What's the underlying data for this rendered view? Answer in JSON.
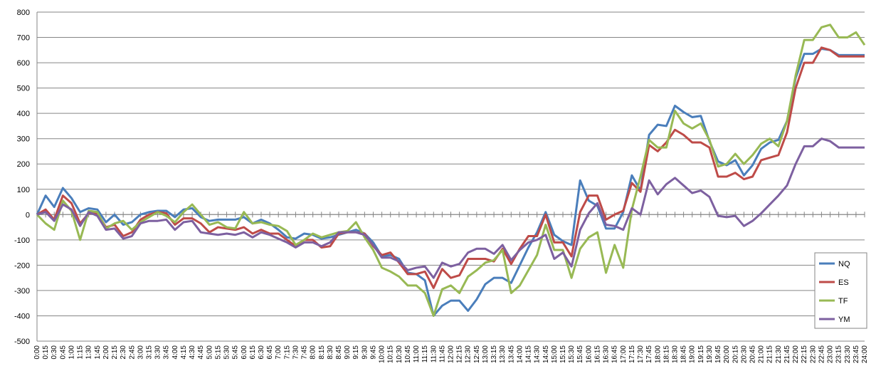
{
  "chart_data": {
    "type": "line",
    "categories": [
      "0:00",
      "0:15",
      "0:30",
      "0:45",
      "1:00",
      "1:15",
      "1:30",
      "1:45",
      "2:00",
      "2:15",
      "2:30",
      "2:45",
      "3:00",
      "3:15",
      "3:30",
      "3:45",
      "4:00",
      "4:15",
      "4:30",
      "4:45",
      "5:00",
      "5:15",
      "5:30",
      "5:45",
      "6:00",
      "6:15",
      "6:30",
      "6:45",
      "7:00",
      "7:15",
      "7:30",
      "7:45",
      "8:00",
      "8:15",
      "8:30",
      "8:45",
      "9:00",
      "9:15",
      "9:30",
      "9:45",
      "10:00",
      "10:15",
      "10:30",
      "10:45",
      "11:00",
      "11:15",
      "11:30",
      "11:45",
      "12:00",
      "12:15",
      "12:30",
      "12:45",
      "13:00",
      "13:15",
      "13:30",
      "13:45",
      "14:00",
      "14:15",
      "14:30",
      "14:45",
      "15:00",
      "15:15",
      "15:30",
      "15:45",
      "16:00",
      "16:15",
      "16:30",
      "16:45",
      "17:00",
      "17:15",
      "17:30",
      "17:45",
      "18:00",
      "18:15",
      "18:30",
      "18:45",
      "19:00",
      "19:15",
      "19:30",
      "19:45",
      "20:00",
      "20:15",
      "20:30",
      "20:45",
      "21:00",
      "21:15",
      "21:30",
      "21:45",
      "22:00",
      "22:15",
      "22:30",
      "22:45",
      "23:00",
      "23:15",
      "23:30",
      "23:45",
      "24:00"
    ],
    "series": [
      {
        "name": "NQ",
        "color": "#4a7ebb",
        "values": [
          0,
          75,
          30,
          105,
          65,
          10,
          25,
          20,
          -30,
          0,
          -40,
          -30,
          0,
          10,
          15,
          15,
          -10,
          20,
          25,
          -10,
          -25,
          -20,
          -20,
          -20,
          -10,
          -35,
          -20,
          -35,
          -60,
          -90,
          -95,
          -75,
          -80,
          -95,
          -90,
          -80,
          -70,
          -60,
          -75,
          -110,
          -165,
          -160,
          -175,
          -230,
          -235,
          -260,
          -400,
          -360,
          -340,
          -340,
          -380,
          -335,
          -275,
          -250,
          -250,
          -270,
          -200,
          -130,
          -70,
          10,
          -80,
          -105,
          -120,
          135,
          55,
          35,
          -55,
          -55,
          10,
          155,
          95,
          315,
          355,
          350,
          430,
          405,
          385,
          390,
          290,
          210,
          195,
          215,
          155,
          195,
          260,
          285,
          295,
          370,
          540,
          635,
          635,
          655,
          650,
          630,
          630,
          630,
          630
        ]
      },
      {
        "name": "ES",
        "color": "#be4b48",
        "values": [
          0,
          20,
          -20,
          75,
          45,
          -35,
          5,
          5,
          -50,
          -40,
          -85,
          -70,
          -20,
          0,
          10,
          5,
          -40,
          -15,
          -15,
          -35,
          -70,
          -50,
          -55,
          -60,
          -50,
          -75,
          -60,
          -75,
          -75,
          -100,
          -125,
          -100,
          -100,
          -130,
          -125,
          -75,
          -70,
          -70,
          -75,
          -125,
          -160,
          -150,
          -190,
          -235,
          -235,
          -225,
          -290,
          -215,
          -250,
          -240,
          -175,
          -175,
          -175,
          -185,
          -135,
          -195,
          -135,
          -85,
          -85,
          0,
          -110,
          -110,
          -165,
          10,
          75,
          75,
          -20,
          0,
          15,
          125,
          90,
          275,
          250,
          285,
          335,
          315,
          285,
          285,
          265,
          150,
          150,
          165,
          140,
          150,
          215,
          225,
          235,
          325,
          500,
          600,
          600,
          660,
          650,
          625,
          625,
          625,
          625
        ]
      },
      {
        "name": "TF",
        "color": "#98b954",
        "values": [
          0,
          -35,
          -60,
          55,
          15,
          -100,
          15,
          10,
          -55,
          -35,
          -25,
          -60,
          -30,
          -10,
          10,
          -5,
          -30,
          10,
          40,
          0,
          -40,
          -30,
          -50,
          -55,
          10,
          -35,
          -30,
          -40,
          -45,
          -65,
          -120,
          -100,
          -75,
          -90,
          -80,
          -70,
          -65,
          -30,
          -90,
          -140,
          -210,
          -225,
          -245,
          -280,
          -280,
          -310,
          -400,
          -295,
          -280,
          -310,
          -245,
          -220,
          -190,
          -180,
          -140,
          -310,
          -280,
          -220,
          -160,
          -40,
          -140,
          -140,
          -250,
          -135,
          -90,
          -70,
          -230,
          -120,
          -210,
          20,
          150,
          295,
          265,
          265,
          410,
          360,
          340,
          360,
          295,
          190,
          200,
          240,
          200,
          235,
          280,
          300,
          270,
          370,
          550,
          690,
          690,
          740,
          750,
          700,
          700,
          720,
          670
        ]
      },
      {
        "name": "YM",
        "color": "#7d60a0",
        "values": [
          0,
          10,
          -25,
          40,
          20,
          -45,
          10,
          -5,
          -60,
          -55,
          -95,
          -85,
          -35,
          -25,
          -25,
          -20,
          -60,
          -30,
          -25,
          -70,
          -75,
          -80,
          -75,
          -80,
          -70,
          -90,
          -70,
          -80,
          -95,
          -110,
          -130,
          -110,
          -110,
          -125,
          -110,
          -70,
          -70,
          -70,
          -80,
          -120,
          -170,
          -170,
          -185,
          -220,
          -210,
          -205,
          -250,
          -190,
          -205,
          -195,
          -150,
          -135,
          -135,
          -155,
          -120,
          -180,
          -140,
          -110,
          -100,
          -80,
          -175,
          -150,
          -205,
          -60,
          5,
          45,
          -40,
          -45,
          -60,
          25,
          0,
          135,
          80,
          120,
          145,
          115,
          85,
          95,
          70,
          -5,
          -10,
          -5,
          -45,
          -25,
          5,
          40,
          75,
          115,
          200,
          270,
          270,
          300,
          290,
          265,
          265,
          265,
          265
        ]
      }
    ],
    "ylim": [
      -500,
      800
    ],
    "yticks": [
      -500,
      -400,
      -300,
      -200,
      -100,
      0,
      100,
      200,
      300,
      400,
      500,
      600,
      700,
      800
    ],
    "grid": true
  }
}
